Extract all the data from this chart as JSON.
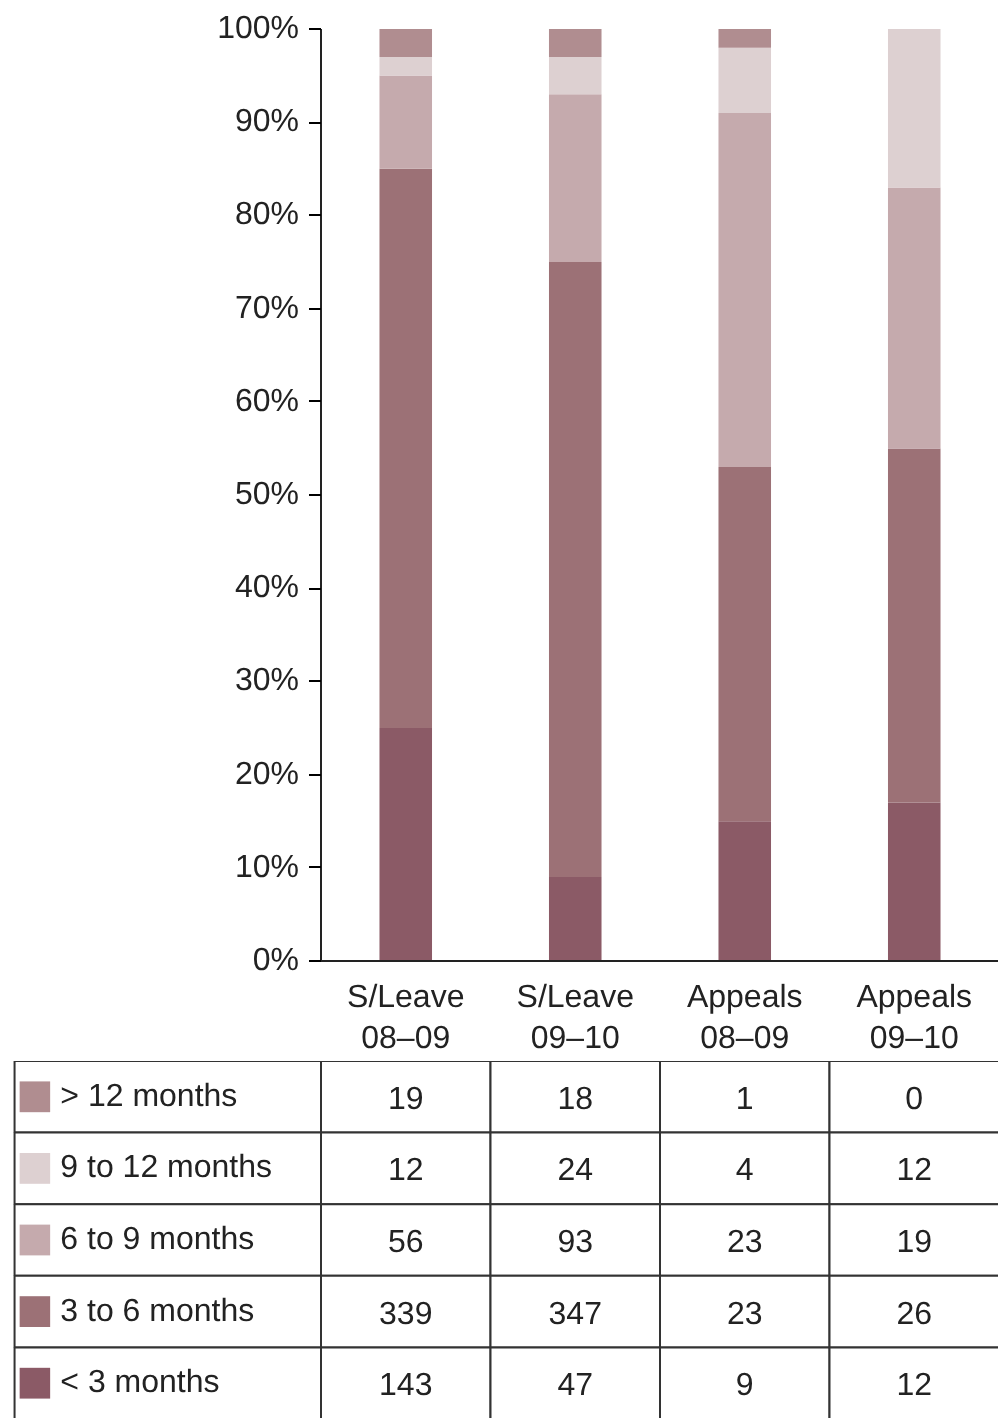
{
  "chart_data": [
    {
      "type": "bar",
      "stacked": true,
      "legend": "bottom left",
      "categories": [
        "S/Leave 08–09",
        "S/Leave 09–10",
        "Appeals 08–09",
        "Appeals 09–10"
      ],
      "series": [
        {
          "name": "< 3 months",
          "color": "#8b5a66",
          "values": [
            25,
            9,
            15,
            17
          ]
        },
        {
          "name": "3 to 6 months",
          "color": "#9c7176",
          "values": [
            60,
            66,
            38,
            38
          ]
        },
        {
          "name": "6 to 9 months",
          "color": "#c5aaad",
          "values": [
            10,
            18,
            38,
            28
          ]
        },
        {
          "name": "9 to 12 months",
          "color": "#ddd0d1",
          "values": [
            2,
            4,
            7,
            17
          ]
        },
        {
          "name": "> 12 months",
          "color": "#b08d90",
          "values": [
            3,
            3,
            2,
            0
          ]
        }
      ],
      "ylim": [
        0,
        100
      ],
      "yticks": [
        {
          "value": 0,
          "label": "0%"
        },
        {
          "value": 10,
          "label": "10%"
        },
        {
          "value": 20,
          "label": "20%"
        },
        {
          "value": 30,
          "label": "30%"
        },
        {
          "value": 40,
          "label": "40%"
        },
        {
          "value": 50,
          "label": "50%"
        },
        {
          "value": 60,
          "label": "60%"
        },
        {
          "value": 70,
          "label": "70%"
        },
        {
          "value": 80,
          "label": "80%"
        },
        {
          "value": 90,
          "label": "90%"
        },
        {
          "value": 100,
          "label": "100%"
        }
      ]
    },
    {
      "type": "other",
      "annotations": [
        "19",
        "18",
        "1",
        "0",
        "12",
        "24",
        "4",
        "12",
        "56",
        "93",
        "23",
        "19",
        "339",
        "347",
        "23",
        "26",
        "143",
        "47",
        "9",
        "12"
      ]
    }
  ]
}
